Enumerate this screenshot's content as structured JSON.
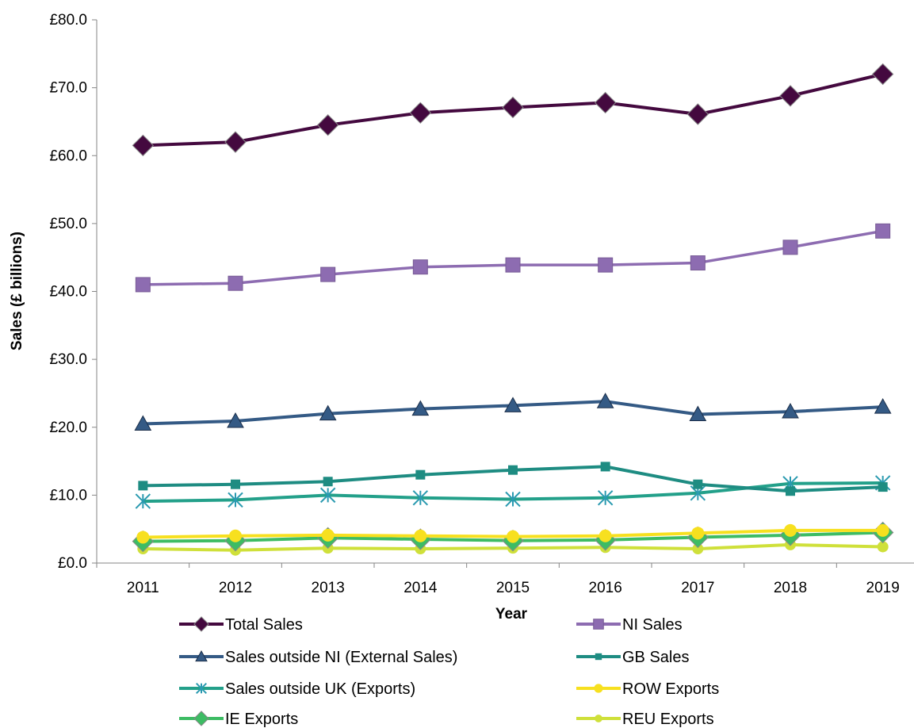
{
  "chart_data": {
    "type": "line",
    "xlabel": "Year",
    "ylabel": "Sales (£ billions)",
    "ylim": [
      0,
      80
    ],
    "yticks": [
      "£0.0",
      "£10.0",
      "£20.0",
      "£30.0",
      "£40.0",
      "£50.0",
      "£60.0",
      "£70.0",
      "£80.0"
    ],
    "grid": false,
    "legend_position": "bottom",
    "categories": [
      "2011",
      "2012",
      "2013",
      "2014",
      "2015",
      "2016",
      "2017",
      "2018",
      "2019"
    ],
    "series": [
      {
        "name": "Total Sales",
        "color": "#44093f",
        "marker": "diamond",
        "values": [
          61.5,
          62.0,
          64.5,
          66.3,
          67.1,
          67.8,
          66.1,
          68.8,
          72.0
        ]
      },
      {
        "name": "NI Sales",
        "color": "#8d6cb1",
        "marker": "square",
        "values": [
          41.0,
          41.2,
          42.5,
          43.6,
          43.9,
          43.9,
          44.2,
          46.5,
          48.9
        ]
      },
      {
        "name": "Sales outside NI (External Sales)",
        "color": "#345a85",
        "marker": "triangle",
        "values": [
          20.5,
          20.9,
          22.0,
          22.7,
          23.2,
          23.8,
          21.9,
          22.3,
          23.0
        ]
      },
      {
        "name": "GB Sales",
        "color": "#1e8c82",
        "marker": "small-square",
        "values": [
          11.4,
          11.6,
          12.0,
          13.0,
          13.7,
          14.2,
          11.6,
          10.6,
          11.2
        ]
      },
      {
        "name": "Sales outside UK (Exports)",
        "color": "#23a08a",
        "marker": "asterisk",
        "values": [
          9.1,
          9.3,
          10.0,
          9.6,
          9.4,
          9.6,
          10.3,
          11.7,
          11.8
        ]
      },
      {
        "name": "ROW Exports",
        "color": "#f7e01f",
        "marker": "circle",
        "values": [
          3.8,
          4.0,
          4.1,
          4.0,
          3.9,
          4.0,
          4.4,
          4.8,
          4.8
        ]
      },
      {
        "name": "IE Exports",
        "color": "#3dbc64",
        "marker": "diamond",
        "values": [
          3.2,
          3.3,
          3.7,
          3.5,
          3.3,
          3.4,
          3.8,
          4.1,
          4.5
        ]
      },
      {
        "name": "REU Exports",
        "color": "#cfe03a",
        "marker": "circle-small",
        "values": [
          2.1,
          1.9,
          2.2,
          2.1,
          2.2,
          2.3,
          2.1,
          2.7,
          2.4
        ]
      }
    ]
  }
}
